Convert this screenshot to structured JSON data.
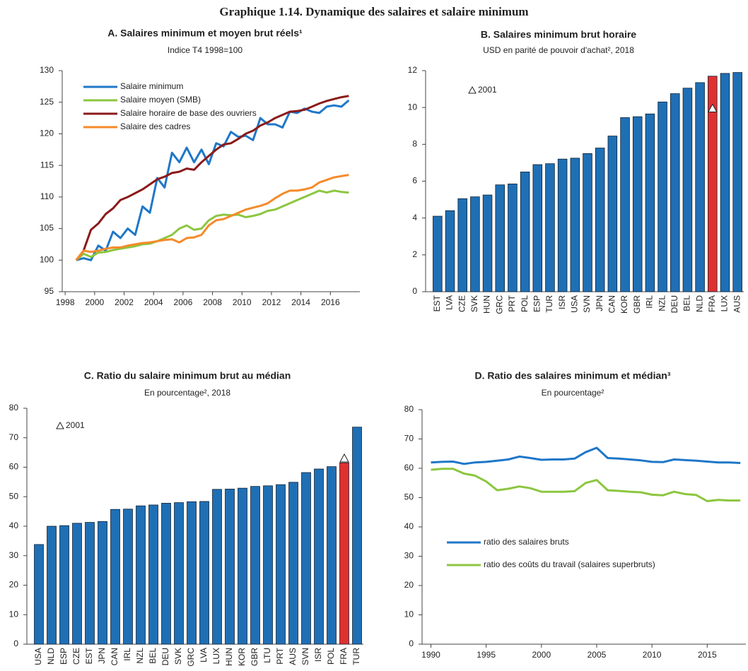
{
  "title": "Graphique 1.14. Dynamique des salaires et salaire minimum",
  "chart_data": [
    {
      "type": "line",
      "title": "A. Salaires minimum et moyen brut réels¹",
      "subtitle": "Indice T4 1998=100",
      "x": [
        1998.75,
        1999.25,
        1999.75,
        2000.25,
        2000.75,
        2001.25,
        2001.75,
        2002.25,
        2002.75,
        2003.25,
        2003.75,
        2004.25,
        2004.75,
        2005.25,
        2005.75,
        2006.25,
        2006.75,
        2007.25,
        2007.75,
        2008.25,
        2008.75,
        2009.25,
        2009.75,
        2010.25,
        2010.75,
        2011.25,
        2011.75,
        2012.25,
        2012.75,
        2013.25,
        2013.75,
        2014.25,
        2014.75,
        2015.25,
        2015.75,
        2016.25,
        2016.75,
        2017.25
      ],
      "xlim": [
        1997.8,
        2018
      ],
      "xticks": [
        1998,
        2000,
        2002,
        2004,
        2006,
        2008,
        2010,
        2012,
        2014,
        2016
      ],
      "ylim": [
        95,
        130
      ],
      "yticks": [
        95,
        100,
        105,
        110,
        115,
        120,
        125,
        130
      ],
      "series": [
        {
          "name": "Salaire minimum",
          "color": "#1f77c8",
          "values": [
            100,
            100.3,
            100,
            102.3,
            101.5,
            104.5,
            103.5,
            105,
            104,
            108.5,
            107.5,
            113,
            111.5,
            117,
            115.5,
            117.8,
            115.5,
            117.5,
            115.2,
            118.5,
            118,
            120.3,
            119.5,
            119.7,
            119,
            122.5,
            121.5,
            121.5,
            121,
            123.5,
            123.3,
            124,
            123.5,
            123.3,
            124.3,
            124.5,
            124.3,
            125.3
          ]
        },
        {
          "name": "Salaire moyen (SMB)",
          "color": "#8cc63f",
          "values": [
            100,
            101,
            100.5,
            101.2,
            101.3,
            101.6,
            101.8,
            102,
            102.2,
            102.5,
            102.6,
            103,
            103.5,
            104,
            105,
            105.5,
            104.8,
            105,
            106.3,
            107,
            107.2,
            107.1,
            107.2,
            106.8,
            107,
            107.3,
            107.8,
            108,
            108.5,
            109,
            109.5,
            110,
            110.5,
            111,
            110.7,
            111,
            110.8,
            110.7
          ]
        },
        {
          "name": "Salaire horaire de base des ouvriers",
          "color": "#8b1a1a",
          "values": [
            100,
            101.5,
            104.8,
            105.8,
            107.3,
            108.2,
            109.5,
            110,
            110.6,
            111.2,
            112,
            112.8,
            113.2,
            113.8,
            114,
            114.5,
            114.3,
            115.5,
            116.5,
            117.5,
            118.3,
            118.5,
            119.2,
            120,
            120.5,
            121.3,
            121.8,
            122.5,
            123,
            123.5,
            123.6,
            123.8,
            124.3,
            124.8,
            125.2,
            125.5,
            125.8,
            126
          ]
        },
        {
          "name": "Salaire des cadres",
          "color": "#f58a2a",
          "values": [
            100,
            101.5,
            101.3,
            101.5,
            101.8,
            102,
            102,
            102.3,
            102.5,
            102.7,
            102.8,
            103,
            103.2,
            103.3,
            102.8,
            103.5,
            103.6,
            104,
            105.5,
            106.3,
            106.5,
            107,
            107.5,
            108,
            108.3,
            108.6,
            109,
            109.8,
            110.5,
            111,
            111,
            111.2,
            111.5,
            112.3,
            112.7,
            113.1,
            113.3,
            113.5
          ]
        }
      ]
    },
    {
      "type": "bar",
      "title": "B. Salaires minimum brut horaire",
      "subtitle": "USD en parité de pouvoir d'achat², 2018",
      "categories": [
        "EST",
        "LVA",
        "CZE",
        "SVK",
        "HUN",
        "GRC",
        "PRT",
        "POL",
        "ESP",
        "TUR",
        "ISR",
        "USA",
        "SVN",
        "JPN",
        "CAN",
        "KOR",
        "GBR",
        "IRL",
        "NZL",
        "DEU",
        "BEL",
        "NLD",
        "FRA",
        "LUX",
        "AUS"
      ],
      "values": [
        4.1,
        4.4,
        5.05,
        5.15,
        5.25,
        5.8,
        5.85,
        6.5,
        6.9,
        6.95,
        7.2,
        7.25,
        7.5,
        7.8,
        8.45,
        9.45,
        9.5,
        9.65,
        10.3,
        10.75,
        11.05,
        11.35,
        11.7,
        11.85,
        11.9
      ],
      "colors": [
        "#1f6fb5",
        "#1f6fb5",
        "#1f6fb5",
        "#1f6fb5",
        "#1f6fb5",
        "#1f6fb5",
        "#1f6fb5",
        "#1f6fb5",
        "#1f6fb5",
        "#1f6fb5",
        "#1f6fb5",
        "#1f6fb5",
        "#1f6fb5",
        "#1f6fb5",
        "#1f6fb5",
        "#1f6fb5",
        "#1f6fb5",
        "#1f6fb5",
        "#1f6fb5",
        "#1f6fb5",
        "#1f6fb5",
        "#1f6fb5",
        "#e03030",
        "#1f6fb5",
        "#1f6fb5"
      ],
      "markers": {
        "name": "2001",
        "values": [
          null,
          null,
          null,
          null,
          null,
          null,
          null,
          null,
          null,
          null,
          null,
          null,
          null,
          null,
          null,
          null,
          null,
          null,
          null,
          null,
          null,
          null,
          9.95,
          null,
          null
        ]
      },
      "ylim": [
        0,
        12
      ],
      "yticks": [
        0,
        2,
        4,
        6,
        8,
        10,
        12
      ]
    },
    {
      "type": "bar",
      "title": "C. Ratio du salaire minimum brut au médian",
      "subtitle": "En pourcentage², 2018",
      "categories": [
        "USA",
        "NLD",
        "ESP",
        "CZE",
        "EST",
        "JPN",
        "CAN",
        "IRL",
        "NZL",
        "BEL",
        "DEU",
        "SVK",
        "GRC",
        "LVA",
        "LUX",
        "HUN",
        "KOR",
        "GBR",
        "LTU",
        "PRT",
        "AUS",
        "SVN",
        "ISR",
        "POL",
        "FRA",
        "TUR"
      ],
      "values": [
        33.8,
        40,
        40.2,
        41,
        41.3,
        41.6,
        45.7,
        45.8,
        46.9,
        47.2,
        47.8,
        48,
        48.3,
        48.4,
        52.5,
        52.6,
        52.9,
        53.5,
        53.7,
        54.1,
        54.9,
        58.2,
        59.4,
        60.2,
        61.5,
        73.6
      ],
      "colors": [
        "#1f6fb5",
        "#1f6fb5",
        "#1f6fb5",
        "#1f6fb5",
        "#1f6fb5",
        "#1f6fb5",
        "#1f6fb5",
        "#1f6fb5",
        "#1f6fb5",
        "#1f6fb5",
        "#1f6fb5",
        "#1f6fb5",
        "#1f6fb5",
        "#1f6fb5",
        "#1f6fb5",
        "#1f6fb5",
        "#1f6fb5",
        "#1f6fb5",
        "#1f6fb5",
        "#1f6fb5",
        "#1f6fb5",
        "#1f6fb5",
        "#1f6fb5",
        "#1f6fb5",
        "#e03030",
        "#1f6fb5"
      ],
      "markers": {
        "name": "2001",
        "values": [
          null,
          null,
          null,
          null,
          null,
          null,
          null,
          null,
          null,
          null,
          null,
          null,
          null,
          null,
          null,
          null,
          null,
          null,
          null,
          null,
          null,
          null,
          null,
          null,
          63,
          null
        ]
      },
      "ylim": [
        0,
        80
      ],
      "yticks": [
        0,
        10,
        20,
        30,
        40,
        50,
        60,
        70,
        80
      ]
    },
    {
      "type": "line",
      "title": "D. Ratio des salaires minimum et médian³",
      "subtitle": "En pourcentage²",
      "x": [
        1990,
        1991,
        1992,
        1993,
        1994,
        1995,
        1996,
        1997,
        1998,
        1999,
        2000,
        2001,
        2002,
        2003,
        2004,
        2005,
        2006,
        2007,
        2008,
        2009,
        2010,
        2011,
        2012,
        2013,
        2014,
        2015,
        2016,
        2017,
        2018
      ],
      "xlim": [
        1989.2,
        2018.5
      ],
      "xticks": [
        1990,
        1995,
        2000,
        2005,
        2010,
        2015
      ],
      "ylim": [
        0,
        80
      ],
      "yticks": [
        0,
        10,
        20,
        30,
        40,
        50,
        60,
        70,
        80
      ],
      "series": [
        {
          "name": "ratio des salaires bruts",
          "color": "#1f77c8",
          "values": [
            62,
            62.2,
            62.3,
            61.5,
            62,
            62.2,
            62.6,
            63,
            64,
            63.5,
            62.9,
            63,
            63,
            63.3,
            65.5,
            67,
            63.5,
            63.3,
            63,
            62.7,
            62.2,
            62.1,
            63,
            62.8,
            62.6,
            62.3,
            62,
            62,
            61.8
          ]
        },
        {
          "name": "ratio des coûts du travail (salaires superbruts)",
          "color": "#8cc63f",
          "values": [
            59.5,
            59.8,
            59.8,
            58.2,
            57.5,
            55.5,
            52.5,
            53,
            53.8,
            53.2,
            52,
            52,
            52,
            52.2,
            55,
            56,
            52.5,
            52.3,
            52,
            51.8,
            51,
            50.8,
            52,
            51.2,
            50.9,
            48.8,
            49.2,
            49,
            49
          ]
        }
      ]
    }
  ]
}
